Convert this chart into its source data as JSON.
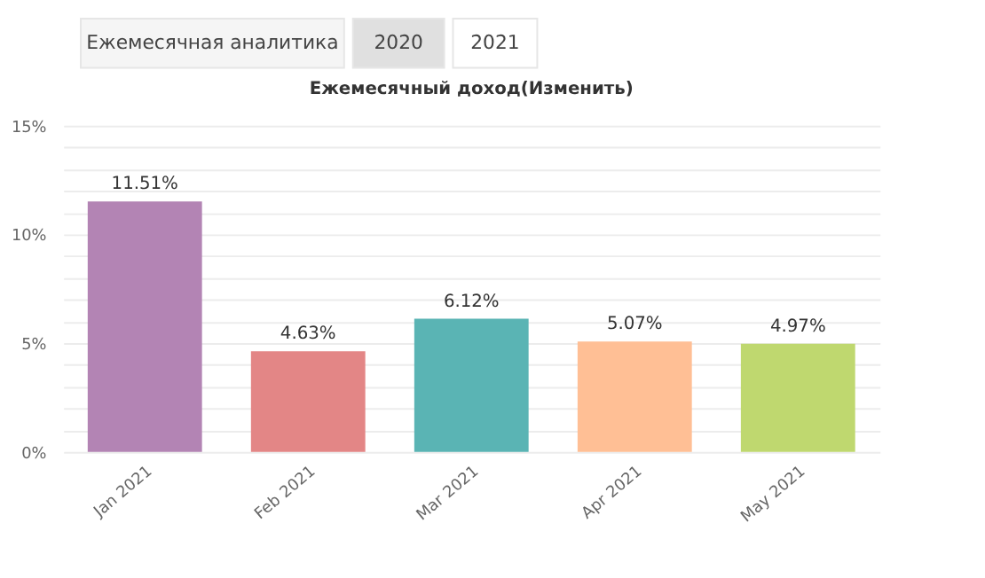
{
  "chart_data": {
    "type": "bar",
    "title": "Ежемесячный доход(Изменить)",
    "annotations": [
      "Ежемесячная аналитика",
      "2020",
      "2021"
    ],
    "categories": [
      "Jan 2021",
      "Feb 2021",
      "Mar 2021",
      "Apr 2021",
      "May 2021"
    ],
    "values": [
      11.51,
      4.63,
      6.12,
      5.07,
      4.97
    ],
    "colors": [
      "#b384b4",
      "#e38686",
      "#5ab4b4",
      "#ffbf95",
      "#bfd86f"
    ],
    "value_labels": [
      "11.51%",
      "4.63%",
      "6.12%",
      "5.07%",
      "4.97%"
    ],
    "ylim": [
      0,
      15
    ],
    "yticks": [
      {
        "value": 0,
        "label": "0%"
      },
      {
        "value": 1,
        "label": null
      },
      {
        "value": 2,
        "label": null
      },
      {
        "value": 3,
        "label": null
      },
      {
        "value": 4,
        "label": null
      },
      {
        "value": 5,
        "label": "5%"
      },
      {
        "value": 6,
        "label": null
      },
      {
        "value": 7,
        "label": null
      },
      {
        "value": 8,
        "label": null
      },
      {
        "value": 9,
        "label": null
      },
      {
        "value": 10,
        "label": "10%"
      },
      {
        "value": 11,
        "label": null
      },
      {
        "value": 12,
        "label": null
      },
      {
        "value": 13,
        "label": null
      },
      {
        "value": 14,
        "label": null
      },
      {
        "value": 15,
        "label": "15%"
      }
    ],
    "grid": true
  }
}
